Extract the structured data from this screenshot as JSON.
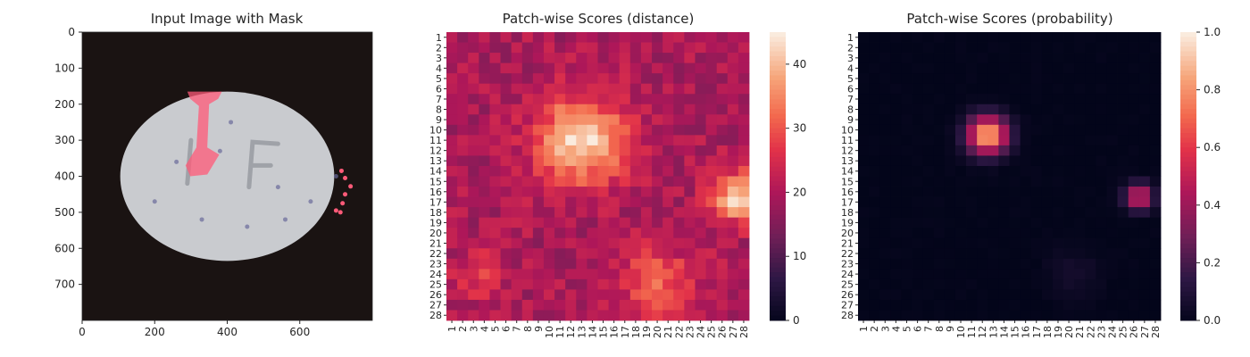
{
  "chart_data": [
    {
      "type": "image",
      "title": "Input Image with Mask",
      "xticks": [
        "0",
        "200",
        "400",
        "600"
      ],
      "yticks": [
        "0",
        "100",
        "200",
        "300",
        "400",
        "500",
        "600",
        "700"
      ],
      "xlim": [
        0,
        800
      ],
      "ylim": [
        800,
        0
      ],
      "colors": {
        "background": "#1a1312",
        "pill": "#c9cbcf",
        "mask": "#ff5a78",
        "stain": "#6a6a9a"
      }
    },
    {
      "type": "heatmap",
      "title": "Patch-wise Scores (distance)",
      "rows": 28,
      "cols": 28,
      "categories": [
        "1",
        "2",
        "3",
        "4",
        "5",
        "6",
        "7",
        "8",
        "9",
        "10",
        "11",
        "12",
        "13",
        "14",
        "15",
        "16",
        "17",
        "18",
        "19",
        "20",
        "21",
        "22",
        "23",
        "24",
        "25",
        "26",
        "27",
        "28"
      ],
      "colorbar": {
        "min": 0,
        "max": 45,
        "ticks": [
          "0",
          "10",
          "20",
          "30",
          "40"
        ]
      },
      "colormap": "rocket",
      "base_value": 20,
      "hotspots": [
        {
          "row": 11,
          "col": 13,
          "peak": 45,
          "spread": 2.8
        },
        {
          "row": 16.5,
          "col": 27.5,
          "peak": 42,
          "spread": 1.7
        },
        {
          "row": 25,
          "col": 20,
          "peak": 31,
          "spread": 2.5
        },
        {
          "row": 24,
          "col": 3.5,
          "peak": 28,
          "spread": 1.5
        }
      ]
    },
    {
      "type": "heatmap",
      "title": "Patch-wise Scores (probability)",
      "rows": 28,
      "cols": 28,
      "categories": [
        "1",
        "2",
        "3",
        "4",
        "5",
        "6",
        "7",
        "8",
        "9",
        "10",
        "11",
        "12",
        "13",
        "14",
        "15",
        "16",
        "17",
        "18",
        "19",
        "20",
        "21",
        "22",
        "23",
        "24",
        "25",
        "26",
        "27",
        "28"
      ],
      "colorbar": {
        "min": 0.0,
        "max": 1.0,
        "ticks": [
          "0.0",
          "0.2",
          "0.4",
          "0.6",
          "0.8",
          "1.0"
        ]
      },
      "colormap": "rocket",
      "base_value": 0.0,
      "hotspots": [
        {
          "row": 10.5,
          "col": 12.5,
          "peak": 0.9,
          "spread": 1.3
        },
        {
          "row": 16.5,
          "col": 26.5,
          "peak": 0.55,
          "spread": 0.9
        },
        {
          "row": 24,
          "col": 20.5,
          "peak": 0.06,
          "spread": 1.8
        }
      ]
    }
  ]
}
